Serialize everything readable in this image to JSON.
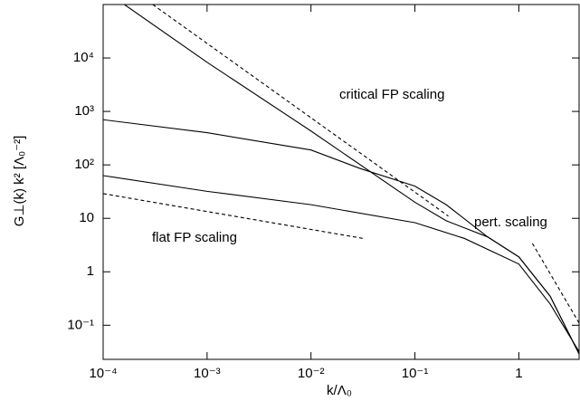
{
  "chart_data": {
    "type": "line",
    "xlabel": "k/Λ₀",
    "ylabel": "G⊥(k) k² [Λ₀⁻²]",
    "xscale": "log",
    "yscale": "log",
    "xlim": [
      0.0001,
      3.8
    ],
    "ylim": [
      0.023,
      100000
    ],
    "xticks": [
      {
        "value": 0.0001,
        "label": "10⁻⁴"
      },
      {
        "value": 0.001,
        "label": "10⁻³"
      },
      {
        "value": 0.01,
        "label": "10⁻²"
      },
      {
        "value": 0.1,
        "label": "10⁻¹"
      },
      1
    ],
    "yticks": [
      {
        "value": 0.1,
        "label": "10⁻¹"
      },
      1,
      10,
      {
        "value": 100,
        "label": "10²"
      },
      {
        "value": 1000,
        "label": "10³"
      },
      {
        "value": 10000,
        "label": "10⁴"
      }
    ],
    "series": [
      {
        "color": "#000000",
        "linestyle": "solid",
        "x": [
          0.00016,
          0.001,
          0.01,
          0.1,
          0.2,
          0.5,
          1,
          2,
          3.8
        ],
        "values": [
          100000,
          8300,
          430,
          20,
          9,
          4.5,
          1.9,
          0.35,
          0.029
        ]
      },
      {
        "color": "#000000",
        "linestyle": "solid",
        "x": [
          0.0001,
          0.001,
          0.01,
          0.03,
          0.1,
          0.2,
          0.5,
          1,
          2,
          3.8
        ],
        "values": [
          700,
          400,
          190,
          85,
          40,
          18,
          4.5,
          1.9,
          0.35,
          0.029
        ]
      },
      {
        "color": "#000000",
        "linestyle": "solid",
        "x": [
          0.0001,
          0.001,
          0.01,
          0.1,
          0.3,
          1,
          2,
          3.8
        ],
        "values": [
          63,
          32,
          18,
          8.3,
          4.2,
          1.4,
          0.25,
          0.032
        ]
      },
      {
        "color": "#000000",
        "linestyle": "dashed",
        "x": [
          0.0003,
          0.21
        ],
        "values": [
          100000,
          11
        ]
      },
      {
        "color": "#000000",
        "linestyle": "dashed",
        "x": [
          1.35,
          3.8
        ],
        "values": [
          3.4,
          0.11
        ]
      },
      {
        "color": "#000000",
        "linestyle": "dashed",
        "x": [
          0.0001,
          0.032
        ],
        "values": [
          29,
          4.2
        ]
      }
    ],
    "annotations": [
      "critical FP scaling",
      "pert. scaling",
      "flat FP scaling"
    ]
  }
}
